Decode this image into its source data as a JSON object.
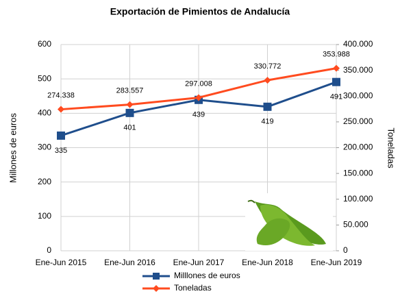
{
  "chart_data": {
    "type": "line",
    "title": "Exportación de Pimientos de Andalucía",
    "y_label": "Millones de euros",
    "y2_label": "Toneladas",
    "categories": [
      "Ene-Jun 2015",
      "Ene-Jun 2016",
      "Ene-Jun 2017",
      "Ene-Jun 2018",
      "Ene-Jun 2019"
    ],
    "ylim": [
      0,
      600
    ],
    "yticks": [
      0,
      100,
      200,
      300,
      400,
      500,
      600
    ],
    "y2lim": [
      0,
      400000
    ],
    "y2ticks": [
      {
        "value": 0,
        "label": "0"
      },
      {
        "value": 50000,
        "label": "50.000"
      },
      {
        "value": 100000,
        "label": "100.000"
      },
      {
        "value": 150000,
        "label": "150.000"
      },
      {
        "value": 200000,
        "label": "200.000"
      },
      {
        "value": 250000,
        "label": "250.000"
      },
      {
        "value": 300000,
        "label": "300.000"
      },
      {
        "value": 350000,
        "label": "350.000"
      },
      {
        "value": 400000,
        "label": "400.000"
      }
    ],
    "grid": true,
    "legend": "bottom",
    "series": [
      {
        "name": "Milllones de euros",
        "color": "#1f4e8c",
        "marker": "square",
        "values": [
          335,
          401,
          439,
          419,
          491
        ]
      },
      {
        "name": "Toneladas",
        "color": "#ff4b1f",
        "marker": "diamond",
        "axis": "y2",
        "values": [
          274338,
          283557,
          297008,
          330772,
          353988
        ],
        "value_labels": [
          "274.338",
          "283.557",
          "297.008",
          "330.772",
          "353.988"
        ]
      }
    ]
  }
}
